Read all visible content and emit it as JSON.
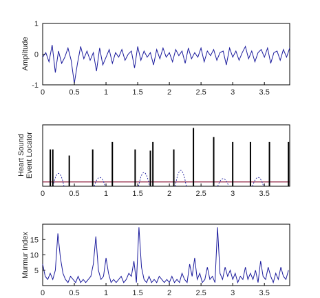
{
  "figure": {
    "colors": {
      "signal": "#1a1a9c",
      "spike": "#000000",
      "threshold": "#8b1a3a",
      "dashed": "#1a1a9c"
    }
  },
  "chart_data": [
    {
      "type": "line",
      "panel": "amplitude",
      "title": "",
      "xlabel": "",
      "ylabel": "Amplitude",
      "xlim": [
        0,
        3.9
      ],
      "ylim": [
        -1,
        1
      ],
      "x_ticks": [
        0,
        0.5,
        1,
        1.5,
        2,
        2.5,
        3,
        3.5
      ],
      "x_tick_labels": [
        "0",
        "0.5",
        "1",
        "1.5",
        "2",
        "2.5",
        "3",
        "3.5"
      ],
      "y_ticks": [
        -1,
        0,
        1
      ],
      "y_tick_labels": [
        "-1",
        "0",
        "1"
      ],
      "series": [
        {
          "values_note": "",
          "x": [
            0,
            0.05,
            0.1,
            0.15,
            0.2,
            0.25,
            0.3,
            0.35,
            0.4,
            0.45,
            0.5,
            0.55,
            0.6,
            0.65,
            0.7,
            0.75,
            0.8,
            0.85,
            0.9,
            0.95,
            1.0,
            1.05,
            1.1,
            1.15,
            1.2,
            1.25,
            1.3,
            1.35,
            1.4,
            1.45,
            1.5,
            1.55,
            1.6,
            1.65,
            1.7,
            1.75,
            1.8,
            1.85,
            1.9,
            1.95,
            2.0,
            2.05,
            2.1,
            2.15,
            2.2,
            2.25,
            2.3,
            2.35,
            2.4,
            2.45,
            2.5,
            2.55,
            2.6,
            2.65,
            2.7,
            2.75,
            2.8,
            2.85,
            2.9,
            2.95,
            3.0,
            3.05,
            3.1,
            3.15,
            3.2,
            3.25,
            3.3,
            3.35,
            3.4,
            3.45,
            3.5,
            3.55,
            3.6,
            3.65,
            3.7,
            3.75,
            3.8,
            3.85,
            3.9
          ],
          "values": [
            -0.1,
            0.05,
            -0.25,
            0.3,
            -0.6,
            0.1,
            -0.3,
            -0.1,
            0.2,
            -0.2,
            -0.95,
            -0.3,
            0.25,
            -0.15,
            0.1,
            -0.2,
            0.05,
            -0.55,
            0.2,
            -0.35,
            -0.1,
            0.15,
            -0.3,
            0.05,
            -0.1,
            0.15,
            -0.2,
            0.0,
            0.1,
            -0.45,
            0.25,
            -0.2,
            0.1,
            -0.1,
            0.05,
            -0.35,
            0.15,
            -0.15,
            0.2,
            -0.1,
            0.05,
            -0.25,
            0.15,
            -0.05,
            0.1,
            -0.3,
            0.2,
            -0.15,
            0.05,
            -0.1,
            0.2,
            -0.25,
            0.1,
            -0.05,
            0.15,
            -0.2,
            0.05,
            0.1,
            -0.35,
            0.2,
            -0.1,
            0.1,
            -0.2,
            0.05,
            0.25,
            -0.15,
            0.1,
            -0.25,
            0.05,
            0.15,
            -0.1,
            0.2,
            -0.3,
            0.05,
            0.1,
            -0.2,
            0.15,
            -0.1,
            0.2
          ]
        }
      ]
    },
    {
      "type": "line",
      "panel": "events",
      "title": "",
      "xlabel": "",
      "ylabel": "Heart Sound Event Locator",
      "ylabel_lines": [
        "Heart Sound",
        "Event Locator"
      ],
      "xlim": [
        0,
        3.9
      ],
      "ylim": [
        0,
        1
      ],
      "x_ticks": [
        0,
        0.5,
        1,
        1.5,
        2,
        2.5,
        3,
        3.5
      ],
      "x_tick_labels": [
        "0",
        "0.5",
        "1",
        "1.5",
        "2",
        "2.5",
        "3",
        "3.5"
      ],
      "events": [
        {
          "x": 0.12,
          "height": 0.6
        },
        {
          "x": 0.16,
          "height": 0.6
        },
        {
          "x": 0.42,
          "height": 0.5
        },
        {
          "x": 0.79,
          "height": 0.6
        },
        {
          "x": 1.1,
          "height": 0.72
        },
        {
          "x": 1.46,
          "height": 0.6
        },
        {
          "x": 1.7,
          "height": 0.58
        },
        {
          "x": 1.74,
          "height": 0.72
        },
        {
          "x": 2.07,
          "height": 0.6
        },
        {
          "x": 2.38,
          "height": 0.95
        },
        {
          "x": 2.7,
          "height": 0.8
        },
        {
          "x": 3.0,
          "height": 0.72
        },
        {
          "x": 3.28,
          "height": 0.72
        },
        {
          "x": 3.58,
          "height": 0.72
        },
        {
          "x": 3.88,
          "height": 0.72
        }
      ],
      "dashed_bumps": [
        {
          "x": 0.25,
          "height": 0.35
        },
        {
          "x": 0.9,
          "height": 0.22
        },
        {
          "x": 1.6,
          "height": 0.38
        },
        {
          "x": 2.18,
          "height": 0.45
        },
        {
          "x": 2.85,
          "height": 0.18
        },
        {
          "x": 3.4,
          "height": 0.22
        }
      ],
      "threshold": 0.07
    },
    {
      "type": "line",
      "panel": "murmur",
      "title": "",
      "xlabel": "",
      "ylabel": "Murmur Index",
      "xlim": [
        0,
        3.9
      ],
      "ylim": [
        0,
        20
      ],
      "x_ticks": [
        0,
        0.5,
        1,
        1.5,
        2,
        2.5,
        3,
        3.5
      ],
      "x_tick_labels": [
        "0",
        "0.5",
        "1",
        "1.5",
        "2",
        "2.5",
        "3",
        "3.5"
      ],
      "y_ticks": [
        5,
        10,
        15
      ],
      "y_tick_labels": [
        "5",
        "10",
        "15"
      ],
      "series": [
        {
          "x": [
            0,
            0.04,
            0.08,
            0.12,
            0.16,
            0.2,
            0.24,
            0.28,
            0.32,
            0.36,
            0.4,
            0.44,
            0.48,
            0.52,
            0.56,
            0.6,
            0.64,
            0.68,
            0.72,
            0.76,
            0.8,
            0.84,
            0.88,
            0.92,
            0.96,
            1.0,
            1.04,
            1.08,
            1.12,
            1.16,
            1.2,
            1.24,
            1.28,
            1.32,
            1.36,
            1.4,
            1.44,
            1.48,
            1.52,
            1.56,
            1.6,
            1.64,
            1.68,
            1.72,
            1.76,
            1.8,
            1.84,
            1.88,
            1.92,
            1.96,
            2.0,
            2.04,
            2.08,
            2.12,
            2.16,
            2.2,
            2.24,
            2.28,
            2.32,
            2.36,
            2.4,
            2.44,
            2.48,
            2.52,
            2.56,
            2.6,
            2.64,
            2.68,
            2.72,
            2.76,
            2.8,
            2.84,
            2.88,
            2.92,
            2.96,
            3.0,
            3.04,
            3.08,
            3.12,
            3.16,
            3.2,
            3.24,
            3.28,
            3.32,
            3.36,
            3.4,
            3.44,
            3.48,
            3.52,
            3.56,
            3.6,
            3.64,
            3.68,
            3.72,
            3.76,
            3.8,
            3.84,
            3.88
          ],
          "values": [
            7,
            3,
            2,
            4,
            2,
            5,
            17,
            9,
            4,
            2,
            1,
            3,
            2,
            1,
            3,
            1,
            2,
            1,
            2,
            3,
            7,
            16,
            5,
            2,
            3,
            9,
            4,
            1,
            2,
            1,
            2,
            3,
            1,
            2,
            4,
            3,
            8,
            1,
            19,
            6,
            2,
            1,
            3,
            1,
            2,
            1,
            3,
            2,
            1,
            2,
            1,
            3,
            1,
            2,
            1,
            4,
            2,
            1,
            7,
            3,
            9,
            2,
            4,
            1,
            2,
            6,
            2,
            3,
            1,
            19,
            4,
            2,
            6,
            3,
            5,
            2,
            4,
            1,
            3,
            2,
            6,
            2,
            4,
            2,
            5,
            1,
            8,
            3,
            2,
            6,
            3,
            1,
            4,
            2,
            6,
            3,
            2,
            5
          ]
        }
      ]
    }
  ]
}
